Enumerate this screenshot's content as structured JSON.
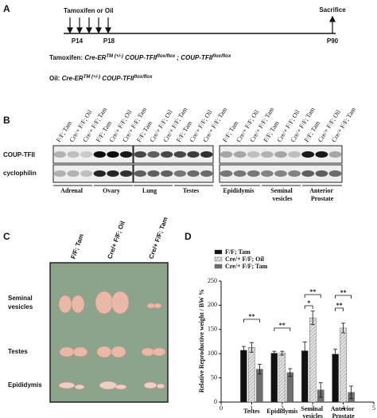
{
  "panel_a": {
    "label": "A",
    "treatment": "Tamoxifen or Oil",
    "start_days": [
      "P14",
      "P18"
    ],
    "endpoint": "Sacrifice",
    "end_day": "P90",
    "tamoxifen_line": [
      {
        "text": "Tamoxifen: "
      },
      {
        "text": "Cre-ER"
      },
      {
        "text": "TM (+/-)",
        "sup": true
      },
      {
        "text": " COUP-TFII"
      },
      {
        "text": "flox/flox",
        "sup": true
      },
      {
        "text": " ; COUP-TFII"
      },
      {
        "text": "flox/flox",
        "sup": true
      }
    ],
    "oil_line": [
      {
        "text": "Oil: "
      },
      {
        "text": "Cre-ER"
      },
      {
        "text": "TM (+/-)",
        "sup": true
      },
      {
        "text": " COUP-TFII"
      },
      {
        "text": "flox/flox",
        "sup": true
      }
    ]
  },
  "panel_b": {
    "label": "B",
    "lane_labels": [
      "F/F; Tam",
      "Cre/+ F/F; Oil",
      "Cre/+ F/F; Tam"
    ],
    "rows": [
      "COUP-TFII",
      "cyclophilin"
    ],
    "tissues": [
      "Adrenal",
      "Ovary",
      "Lung",
      "Testes",
      "Epididymis",
      "Seminal vesicles",
      "Anterior Prostate"
    ]
  },
  "panel_c": {
    "label": "C",
    "columns": [
      "F/F; Tam",
      "Cre/+ F/F; Oil",
      "Cre/+ F/F; Tam"
    ],
    "rows": [
      "Seminal vesicles",
      "Testes",
      "Epididymis"
    ]
  },
  "chart_data": {
    "type": "bar",
    "panel_label": "D",
    "y_label": "Relative Reproductive weight / BW %",
    "categories": [
      "Testes",
      "Epididymis",
      "Seminal vesicles",
      "Anterior Prostate"
    ],
    "x": [
      1,
      2,
      3,
      4
    ],
    "xlim": [
      0,
      5
    ],
    "xticks": [
      0,
      1,
      2,
      3,
      4,
      5
    ],
    "ylim": [
      0,
      250
    ],
    "yticks": [
      0,
      50,
      100,
      150,
      200,
      250
    ],
    "legend": "upper left",
    "series": [
      {
        "name": "F/F; Tam",
        "color": "#111111",
        "values": [
          107,
          101,
          106,
          99
        ],
        "errors": [
          8,
          4,
          18,
          10
        ]
      },
      {
        "name": "Cre/+ F/F; Oil",
        "color": "#c8c8c8",
        "hatch": true,
        "values": [
          113,
          101,
          174,
          153
        ],
        "errors": [
          10,
          4,
          14,
          10
        ]
      },
      {
        "name": "Cre/+ F/F; Tam",
        "color": "#6e6e6e",
        "values": [
          68,
          61,
          25,
          20
        ],
        "errors": [
          10,
          8,
          15,
          13
        ]
      }
    ],
    "annotations": [
      "**",
      "**",
      "**",
      "*",
      "**",
      "**"
    ]
  }
}
